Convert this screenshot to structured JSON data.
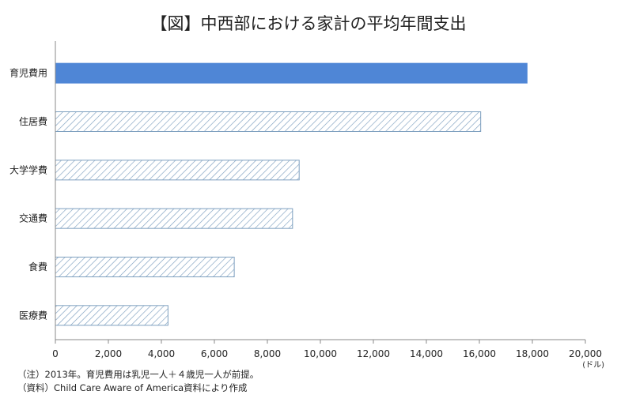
{
  "title": "【図】中西部における家計の平均年間支出",
  "chart_data": {
    "type": "bar",
    "orientation": "horizontal",
    "categories": [
      "育児費用",
      "住居費",
      "大学学費",
      "交通費",
      "食費",
      "医療費"
    ],
    "values": [
      17800,
      16050,
      9200,
      8950,
      6750,
      4250
    ],
    "xlim": [
      0,
      20000
    ],
    "xticks": [
      0,
      2000,
      4000,
      6000,
      8000,
      10000,
      12000,
      14000,
      16000,
      18000,
      20000
    ],
    "xtick_labels": [
      "0",
      "2,000",
      "4,000",
      "6,000",
      "8,000",
      "10,000",
      "12,000",
      "14,000",
      "16,000",
      "18,000",
      "20,000"
    ],
    "unit_label": "(ドル)",
    "highlight_category": "育児費用",
    "colors": {
      "highlight": "#4f86d6",
      "hatch": "#7d9fbf",
      "axis": "#888888"
    }
  },
  "notes": {
    "note1": "（注）2013年。育児費用は乳児一人＋４歳児一人が前提。",
    "note2": "（資料）Child Care Aware of America資料により作成"
  }
}
